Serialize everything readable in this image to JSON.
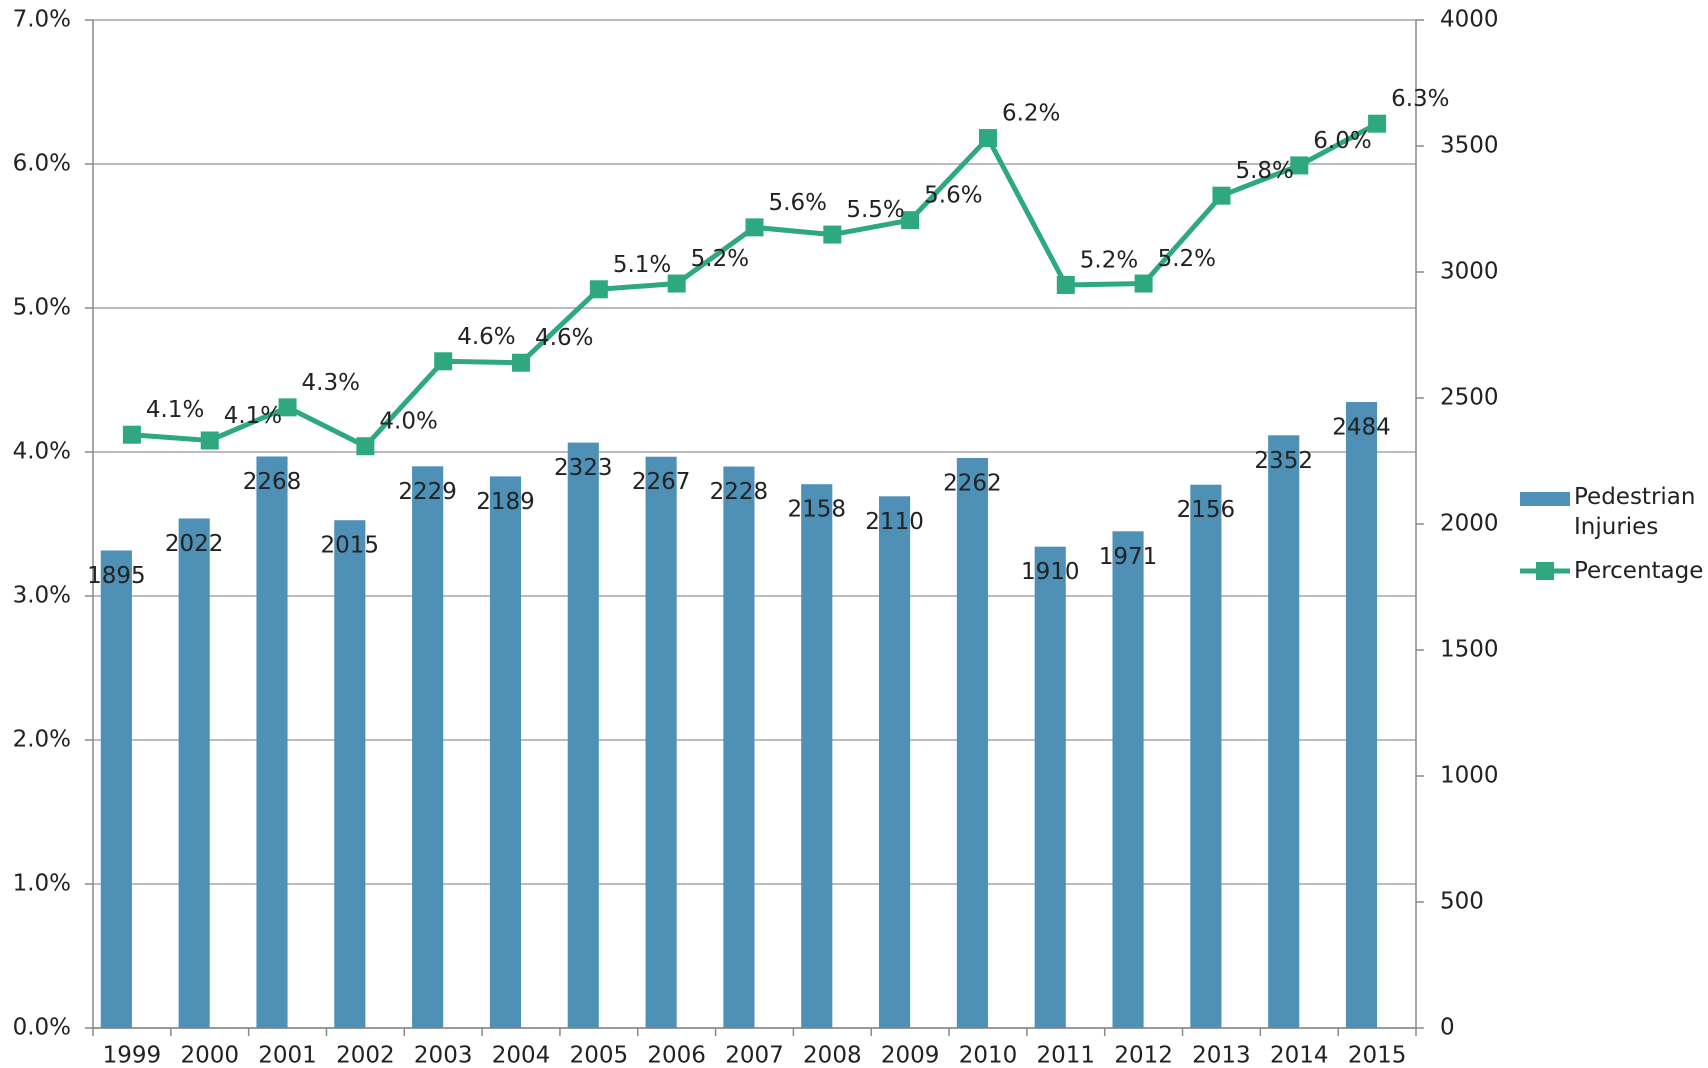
{
  "chart_data": {
    "type": "bar-line",
    "categories": [
      "1999",
      "2000",
      "2001",
      "2002",
      "2003",
      "2004",
      "2005",
      "2006",
      "2007",
      "2008",
      "2009",
      "2010",
      "2011",
      "2012",
      "2013",
      "2014",
      "2015"
    ],
    "series": [
      {
        "name": "Pedestrian Injuries",
        "type": "bar",
        "axis": "y2",
        "color": "#4f91b6",
        "values": [
          1895,
          2022,
          2268,
          2015,
          2229,
          2189,
          2323,
          2267,
          2228,
          2158,
          2110,
          2262,
          1910,
          1971,
          2156,
          2352,
          2484
        ]
      },
      {
        "name": "Percentage",
        "type": "line",
        "axis": "y",
        "color": "#2ea87e",
        "values": [
          4.12,
          4.08,
          4.31,
          4.04,
          4.63,
          4.62,
          5.13,
          5.17,
          5.56,
          5.51,
          5.61,
          6.18,
          5.16,
          5.17,
          5.78,
          5.99,
          6.28
        ],
        "value_labels": [
          "4.1%",
          "4.1%",
          "4.3%",
          "4.0%",
          "4.6%",
          "4.6%",
          "5.1%",
          "5.2%",
          "5.6%",
          "5.5%",
          "5.6%",
          "6.2%",
          "5.2%",
          "5.2%",
          "5.8%",
          "6.0%",
          "6.3%"
        ]
      }
    ],
    "ylim": [
      0,
      7
    ],
    "yticks": [
      {
        "value": 0,
        "label": "0.0%"
      },
      {
        "value": 1,
        "label": "1.0%"
      },
      {
        "value": 2,
        "label": "2.0%"
      },
      {
        "value": 3,
        "label": "3.0%"
      },
      {
        "value": 4,
        "label": "4.0%"
      },
      {
        "value": 5,
        "label": "5.0%"
      },
      {
        "value": 6,
        "label": "6.0%"
      },
      {
        "value": 7,
        "label": "7.0%"
      }
    ],
    "y2lim": [
      0,
      4000
    ],
    "y2ticks": [
      0,
      500,
      1000,
      1500,
      2000,
      2500,
      3000,
      3500,
      4000
    ],
    "grid": true,
    "legend": "right"
  }
}
